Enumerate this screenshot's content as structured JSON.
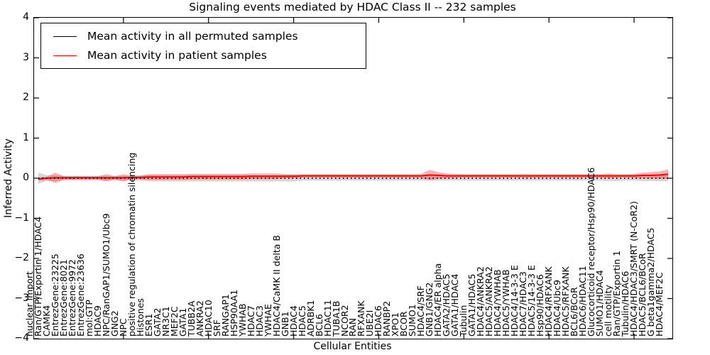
{
  "chart_data": {
    "type": "line",
    "title": "Signaling events mediated by HDAC Class II -- 232 samples",
    "xlabel": "Cellular Entities",
    "ylabel": "Inferred Activity",
    "ylim": [
      -4,
      4
    ],
    "yticks": [
      4,
      3,
      2,
      1,
      0,
      -1,
      -2,
      -3,
      -4
    ],
    "xtick_every": 10,
    "grid": false,
    "legend_position": "upper left",
    "categories": [
      "nuclear import",
      "Ran/GTP/Exportin 1/HDAC4",
      "CAMK4",
      "EntrezGene:23225",
      "EntrezGene:8021",
      "EntrezGene:9972",
      "EntrezGene:23636",
      "mol:GTP",
      "HDAC9",
      "NPC/RanGAP1/SUMO1/Ubc9",
      "GNG2",
      "NPC",
      "positive regulation of chromatin silencing",
      "Histones",
      "ESR1",
      "GATA2",
      "NR3C1",
      "MEF2C",
      "GATA1",
      "TUBB2A",
      "ANKRA2",
      "HDAC10",
      "SRF",
      "RANGAP1",
      "HSP90AA1",
      "YWHAB",
      "HDAC7",
      "HDAC3",
      "YWHAE",
      "HDAC4/CaMK II delta B",
      "GNB1",
      "HDAC4",
      "HDAC5",
      "ADRBK1",
      "BCL6",
      "HDAC11",
      "TUBA1B",
      "NCOR2",
      "RAN",
      "RFXANK",
      "UBE2I",
      "HDAC6",
      "RANBP2",
      "XPO1",
      "BCOR",
      "SUMO1",
      "HDAC4/SRF",
      "GNB1/GNG2",
      "HDAC4/ER alpha",
      "GATA2/HDAC5",
      "GATA1/HDAC4",
      "Tubulin",
      "GATA1/HDAC5",
      "HDAC4/ANKRA2",
      "HDAC5/ANKRA2",
      "HDAC4/YWHAB",
      "HDAC5/YWHAB",
      "HDAC4/14-3-3 E",
      "HDAC7/HDAC3",
      "HDAC5/14-3-3 E",
      "Hsp90/HDAC6",
      "HDAC4/RFXANK",
      "HDAC4/Ubc9",
      "HDAC5/RFXANK",
      "BCL6/BCoR",
      "HDAC6/HDAC11",
      "Glucocorticoid receptor/Hsp90/HDAC6",
      "SUMO1/HDAC4",
      "cell motility",
      "Ran/GTP/Exportin 1",
      "Tubulin/HDAC6",
      "HDAC4/HDAC3/SMRT (N-CoR2)",
      "HDAC5/BCL6/BCoR",
      "G beta1gamma2/HDAC5",
      "HDAC4/MEF2C"
    ],
    "series": [
      {
        "name": "Mean activity in all permuted samples",
        "color": "#000000",
        "line_style": "dotted",
        "band_color": "rgba(0,0,0,0.16)",
        "values": [
          0,
          0,
          0,
          0,
          0,
          0,
          0,
          0,
          0,
          0,
          0,
          0,
          0,
          0,
          0,
          0,
          0,
          0,
          0,
          0,
          0,
          0,
          0,
          0,
          0,
          0,
          0,
          0,
          0,
          0,
          0,
          0,
          0,
          0,
          0,
          0,
          0,
          0,
          0,
          0,
          0,
          0,
          0,
          0,
          0,
          0,
          0,
          0,
          0,
          0,
          0,
          0,
          0,
          0,
          0,
          0,
          0,
          0,
          0,
          0,
          0,
          0,
          0,
          0,
          0,
          0,
          0,
          0,
          0,
          0,
          0,
          0,
          0,
          0,
          0
        ],
        "band": [
          0.14,
          0.07,
          0.07,
          0.06,
          0.06,
          0.06,
          0.06,
          0.06,
          0.06,
          0.06,
          0.06,
          0.06,
          0.06,
          0.08,
          0.08,
          0.08,
          0.08,
          0.08,
          0.08,
          0.08,
          0.08,
          0.08,
          0.08,
          0.08,
          0.08,
          0.08,
          0.08,
          0.08,
          0.08,
          0.08,
          0.08,
          0.06,
          0.06,
          0.06,
          0.06,
          0.06,
          0.06,
          0.06,
          0.06,
          0.06,
          0.06,
          0.06,
          0.06,
          0.06,
          0.06,
          0.06,
          0.06,
          0.06,
          0.06,
          0.06,
          0.06,
          0.06,
          0.06,
          0.06,
          0.06,
          0.06,
          0.06,
          0.06,
          0.06,
          0.06,
          0.06,
          0.06,
          0.06,
          0.06,
          0.06,
          0.06,
          0.06,
          0.07,
          0.07,
          0.06,
          0.06,
          0.07,
          0.07,
          0.07,
          0.08
        ]
      },
      {
        "name": "Mean activity in patient samples",
        "color": "#ff0000",
        "line_style": "solid",
        "band_color": "rgba(255,0,0,0.30)",
        "values": [
          -0.02,
          0.0,
          0.01,
          0.01,
          0.01,
          0.01,
          0.01,
          0.01,
          0.01,
          0.01,
          0.01,
          0.02,
          0.02,
          0.03,
          0.03,
          0.03,
          0.03,
          0.03,
          0.04,
          0.04,
          0.04,
          0.04,
          0.04,
          0.04,
          0.04,
          0.05,
          0.05,
          0.05,
          0.05,
          0.05,
          0.05,
          0.06,
          0.06,
          0.06,
          0.06,
          0.06,
          0.06,
          0.06,
          0.06,
          0.06,
          0.06,
          0.06,
          0.06,
          0.06,
          0.06,
          0.06,
          0.08,
          0.07,
          0.06,
          0.06,
          0.06,
          0.06,
          0.06,
          0.06,
          0.06,
          0.06,
          0.06,
          0.06,
          0.06,
          0.06,
          0.06,
          0.06,
          0.06,
          0.06,
          0.06,
          0.06,
          0.06,
          0.06,
          0.06,
          0.06,
          0.06,
          0.07,
          0.07,
          0.08,
          0.1
        ],
        "band": [
          0.04,
          0.04,
          0.13,
          0.04,
          0.04,
          0.04,
          0.04,
          0.04,
          0.09,
          0.04,
          0.09,
          0.04,
          0.05,
          0.07,
          0.07,
          0.07,
          0.07,
          0.07,
          0.07,
          0.07,
          0.07,
          0.07,
          0.07,
          0.07,
          0.07,
          0.07,
          0.07,
          0.07,
          0.07,
          0.05,
          0.05,
          0.04,
          0.04,
          0.04,
          0.04,
          0.04,
          0.04,
          0.04,
          0.04,
          0.04,
          0.04,
          0.04,
          0.04,
          0.04,
          0.04,
          0.05,
          0.13,
          0.08,
          0.06,
          0.05,
          0.04,
          0.04,
          0.04,
          0.04,
          0.04,
          0.04,
          0.04,
          0.05,
          0.04,
          0.04,
          0.04,
          0.04,
          0.04,
          0.04,
          0.04,
          0.04,
          0.04,
          0.06,
          0.04,
          0.04,
          0.05,
          0.07,
          0.08,
          0.09,
          0.12
        ]
      }
    ]
  }
}
